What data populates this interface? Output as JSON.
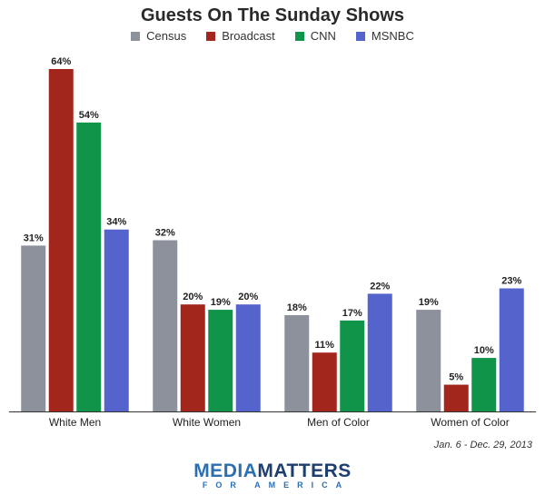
{
  "chart_data": {
    "type": "bar",
    "title": "Guests On The Sunday Shows",
    "categories": [
      "White Men",
      "White Women",
      "Men of Color",
      "Women of Color"
    ],
    "series": [
      {
        "name": "Census",
        "color": "#8c919b",
        "values": [
          31,
          32,
          18,
          19
        ]
      },
      {
        "name": "Broadcast",
        "color": "#a3261c",
        "values": [
          64,
          20,
          11,
          5
        ]
      },
      {
        "name": "CNN",
        "color": "#0f944a",
        "values": [
          54,
          19,
          17,
          10
        ]
      },
      {
        "name": "MSNBC",
        "color": "#5563cc",
        "values": [
          34,
          20,
          22,
          23
        ]
      }
    ],
    "value_suffix": "%",
    "ylim": [
      0,
      64
    ],
    "grid": false,
    "legend": "top-center"
  },
  "footer": {
    "date_range": "Jan. 6 - Dec. 29, 2013"
  },
  "logo": {
    "media": "MEDIA",
    "matters": "MATTERS",
    "sub": "FOR AMERICA"
  }
}
